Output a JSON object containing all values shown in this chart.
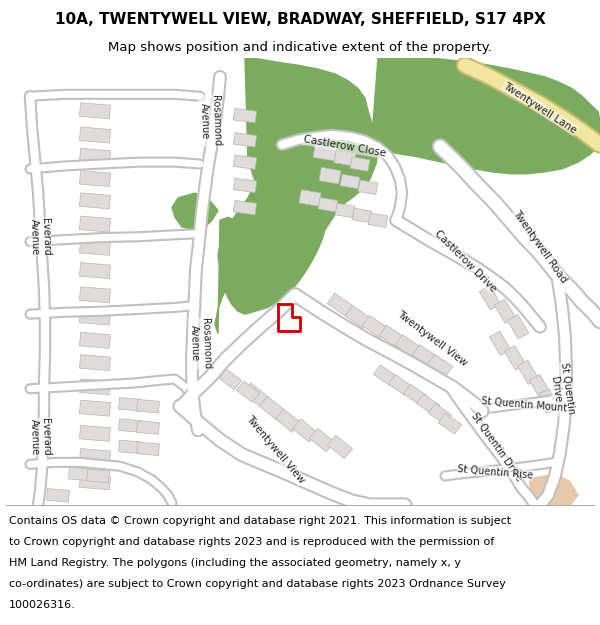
{
  "title_line1": "10A, TWENTYWELL VIEW, BRADWAY, SHEFFIELD, S17 4PX",
  "title_line2": "Map shows position and indicative extent of the property.",
  "copyright_lines": [
    "Contains OS data © Crown copyright and database right 2021. This information is subject",
    "to Crown copyright and database rights 2023 and is reproduced with the permission of",
    "HM Land Registry. The polygons (including the associated geometry, namely x, y",
    "co-ordinates) are subject to Crown copyright and database rights 2023 Ordnance Survey",
    "100026316."
  ],
  "map_bg": "#f2f0ed",
  "road_fill": "#ffffff",
  "road_outline": "#c8c8c8",
  "green_color": "#7aab5e",
  "building_color": "#dedbd8",
  "building_outline": "#b8b5b2",
  "plot_color": "#cc0000",
  "yellow_fill": "#f0e6a0",
  "yellow_outline": "#c8b870",
  "title_fs": 11,
  "sub_fs": 9.5,
  "copy_fs": 8.0,
  "label_fs": 7.5
}
